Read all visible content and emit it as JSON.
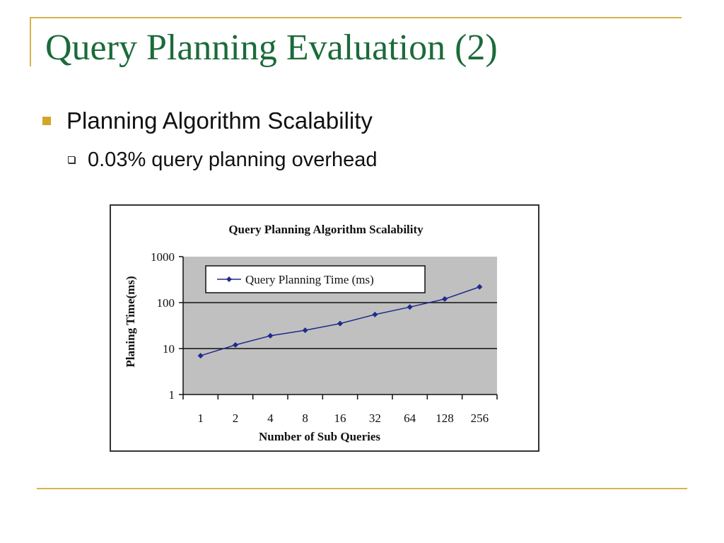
{
  "slide": {
    "title": "Query Planning Evaluation (2)",
    "bullet_1": "Planning Algorithm Scalability",
    "bullet_1_1": "0.03% query planning overhead"
  },
  "colors": {
    "title": "#1b6b3a",
    "accent": "#d4a52b",
    "plot_area": "#c0c0c0",
    "series": "#1f2a8c"
  },
  "chart_data": {
    "type": "line",
    "title": "Query Planning Algorithm Scalability",
    "xlabel": "Number of Sub Queries",
    "ylabel": "Planing Time(ms)",
    "yscale": "log",
    "ylim": [
      1,
      1000
    ],
    "y_ticks": [
      "1",
      "10",
      "100",
      "1000"
    ],
    "grid": "horizontal",
    "legend_position": "top-left inside plot",
    "categories": [
      "1",
      "2",
      "4",
      "8",
      "16",
      "32",
      "64",
      "128",
      "256"
    ],
    "series": [
      {
        "name": "Query Planning Time (ms)",
        "values": [
          7,
          12,
          19,
          25,
          35,
          55,
          80,
          120,
          220
        ]
      }
    ]
  }
}
